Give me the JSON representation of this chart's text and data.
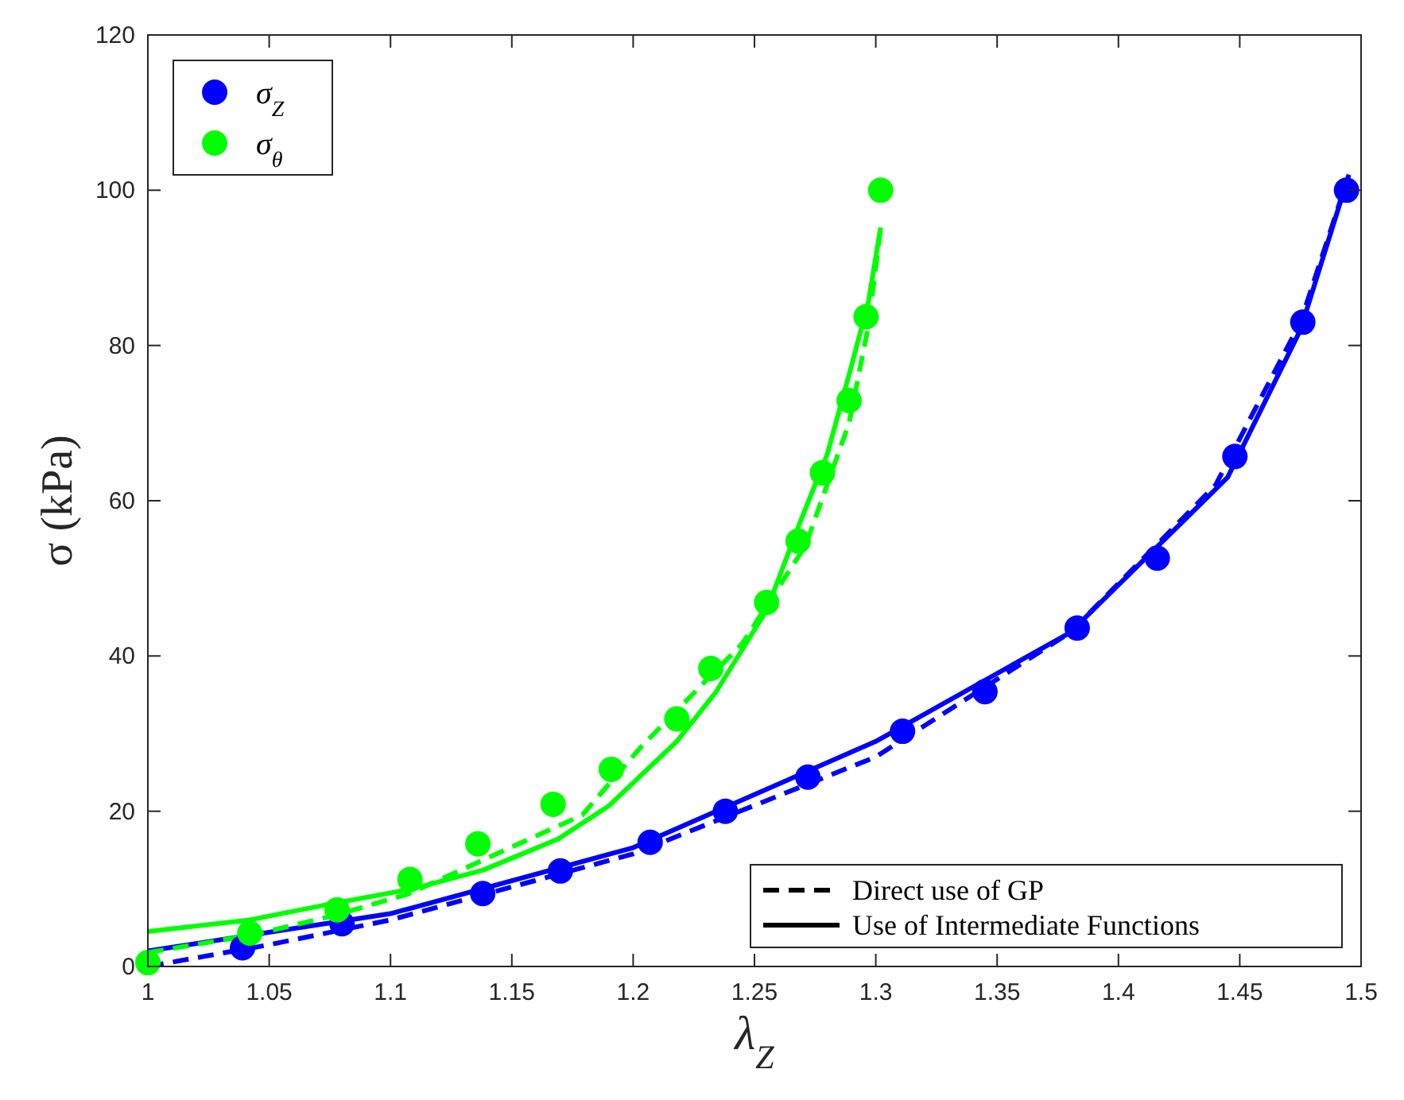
{
  "chart_data": {
    "type": "line",
    "xlabel": "λ$_{Z}$",
    "ylabel": "σ (kPa)",
    "xlim": [
      1,
      1.5
    ],
    "xticks": [
      1,
      1.05,
      1.1,
      1.15,
      1.2,
      1.25,
      1.3,
      1.35,
      1.4,
      1.45,
      1.5
    ],
    "ylim": [
      0,
      120
    ],
    "yticks": [
      0,
      20,
      40,
      60,
      80,
      100,
      120
    ],
    "grid": false,
    "legend": "top left",
    "annotations": [
      "Direct use of GP",
      "Use of Intermediate Functions"
    ],
    "series": [
      {
        "type": "line",
        "line_style": "dashed",
        "color": "#0000ff",
        "x": [
          1,
          1.05,
          1.1,
          1.2,
          1.3,
          1.38,
          1.44,
          1.475,
          1.495
        ],
        "values": [
          0,
          2.8,
          6,
          14.5,
          27,
          43,
          62,
          83,
          102
        ]
      },
      {
        "type": "line",
        "line_style": "solid",
        "color": "#0000ff",
        "x": [
          1,
          1.1,
          1.2,
          1.3,
          1.38,
          1.445,
          1.475,
          1.493
        ],
        "values": [
          2,
          6.8,
          15.3,
          29,
          43,
          63,
          82,
          100
        ]
      },
      {
        "type": "line",
        "line_style": "dashed",
        "color": "#00ff00",
        "x": [
          1,
          1.042,
          1.076,
          1.107,
          1.179,
          1.203,
          1.245,
          1.271,
          1.289,
          1.297,
          1.302
        ],
        "values": [
          1.8,
          4,
          6.5,
          9.3,
          19.5,
          28.2,
          41.6,
          54.2,
          70,
          82.6,
          95.2
        ]
      },
      {
        "type": "line",
        "line_style": "solid",
        "color": "#00ff00",
        "x": [
          1,
          1.042,
          1.076,
          1.109,
          1.138,
          1.169,
          1.19,
          1.218,
          1.234,
          1.255,
          1.268,
          1.28,
          1.29,
          1.297,
          1.302
        ],
        "values": [
          4.5,
          6,
          8.1,
          10,
          12.4,
          16.4,
          20.7,
          29,
          35.3,
          45.9,
          56.6,
          66,
          77.4,
          85.7,
          95.2
        ]
      },
      {
        "type": "scatter",
        "name": "σ$_{Z}$",
        "marker": "circle",
        "color": "#0000ff",
        "x": [
          1.039,
          1.08,
          1.138,
          1.17,
          1.207,
          1.238,
          1.272,
          1.311,
          1.345,
          1.383,
          1.416,
          1.448,
          1.476,
          1.494
        ],
        "values": [
          2.4,
          5.5,
          9.4,
          12.3,
          16,
          20,
          24.4,
          30.3,
          35.4,
          43.6,
          52.6,
          65.7,
          83,
          100
        ]
      },
      {
        "type": "scatter",
        "name": "σ$_{θ}$",
        "marker": "circle",
        "color": "#00ff00",
        "x": [
          1,
          1.042,
          1.078,
          1.108,
          1.136,
          1.167,
          1.191,
          1.218,
          1.232,
          1.255,
          1.268,
          1.278,
          1.289,
          1.296,
          1.302
        ],
        "values": [
          0.5,
          4.3,
          7.3,
          11.2,
          15.8,
          20.9,
          25.4,
          31.9,
          38.4,
          46.9,
          54.8,
          63.6,
          72.9,
          83.7,
          100
        ]
      }
    ]
  }
}
